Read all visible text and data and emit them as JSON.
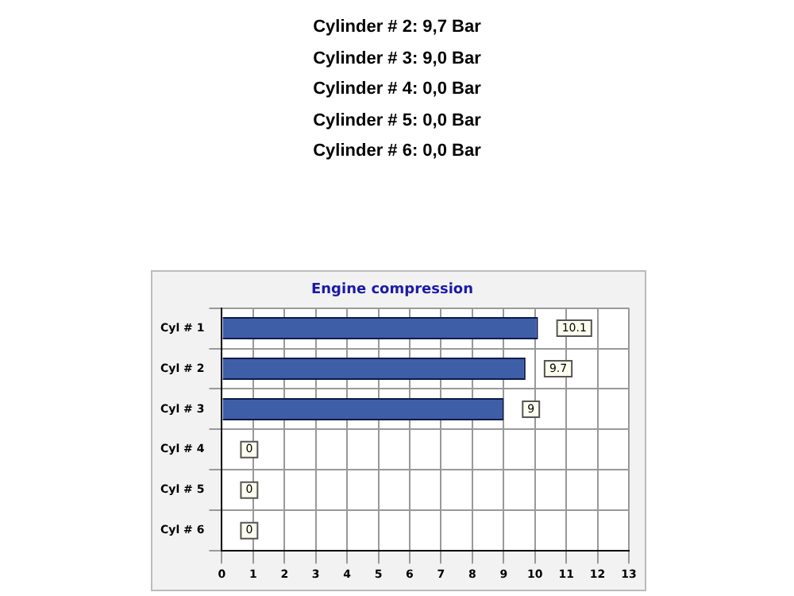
{
  "chart_data": {
    "type": "bar",
    "orientation": "horizontal",
    "title": "Engine compression",
    "categories": [
      "Cyl # 1",
      "Cyl # 2",
      "Cyl # 3",
      "Cyl # 4",
      "Cyl # 5",
      "Cyl # 6"
    ],
    "values": [
      10.1,
      9.7,
      9,
      0,
      0,
      0
    ],
    "color": "#3f5ea8",
    "xlim": [
      0,
      13
    ],
    "xticks": [
      0,
      1,
      2,
      3,
      4,
      5,
      6,
      7,
      8,
      9,
      10,
      11,
      12,
      13
    ],
    "grid": true,
    "data_labels": true,
    "annotations": [
      "Cylinder # 2:  9,7 Bar",
      "Cylinder # 3:  9,0 Bar",
      "Cylinder # 4:  0,0 Bar",
      "Cylinder # 5:  0,0 Bar",
      "Cylinder # 6:  0,0 Bar"
    ]
  }
}
